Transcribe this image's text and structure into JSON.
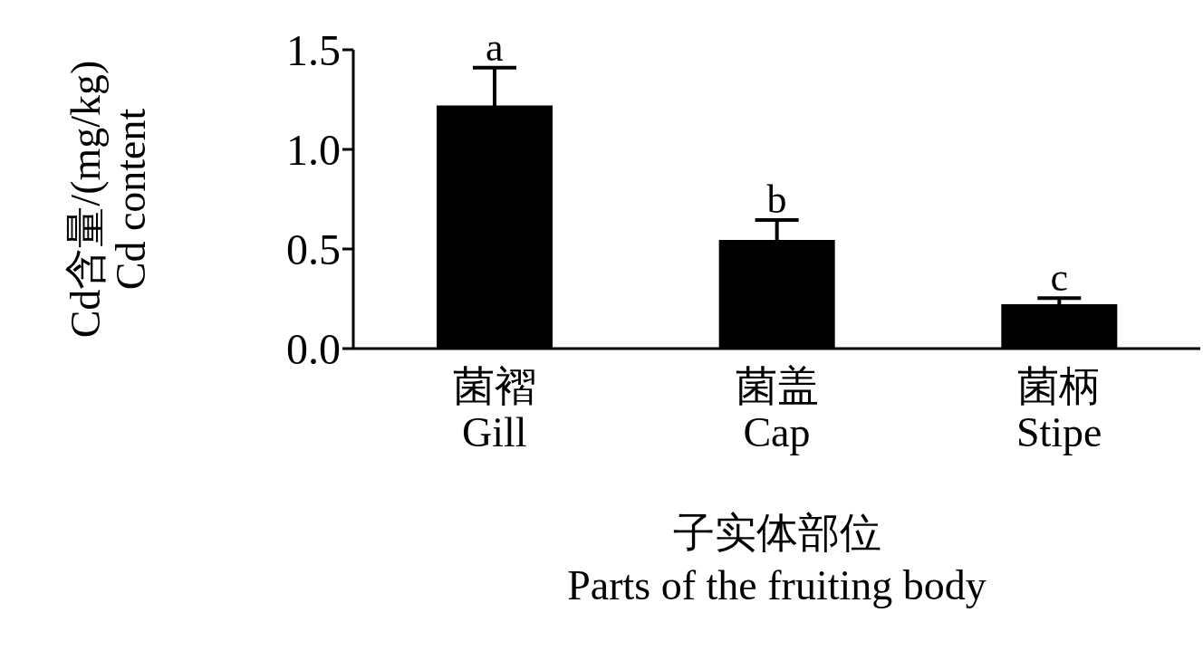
{
  "chart_data": {
    "type": "bar",
    "categories": [
      "菌褶\nGill",
      "菌盖\nCap",
      "菌柄\nStipe"
    ],
    "values": [
      1.22,
      0.545,
      0.223
    ],
    "errors": [
      0.19,
      0.1,
      0.03
    ],
    "color": "#000000",
    "xlabel": "子实体部位\nParts of the fruiting body",
    "ylabel": "Cd含量/(mg/kg)\nCd content",
    "ylim": [
      0,
      1.5
    ],
    "yticks": [
      {
        "value": 0,
        "label": "0.0"
      },
      {
        "value": 0.5,
        "label": "0.5"
      },
      {
        "value": 1,
        "label": "1.0"
      },
      {
        "value": 1.5,
        "label": "1.5"
      }
    ],
    "annotations": [
      {
        "text": "a",
        "x": "菌褶\nGill",
        "y": 1.41
      },
      {
        "text": "b",
        "x": "菌盖\nCap",
        "y": 0.645
      },
      {
        "text": "c",
        "x": "菌柄\nStipe",
        "y": 0.253
      }
    ],
    "grid": false,
    "legend": false
  }
}
